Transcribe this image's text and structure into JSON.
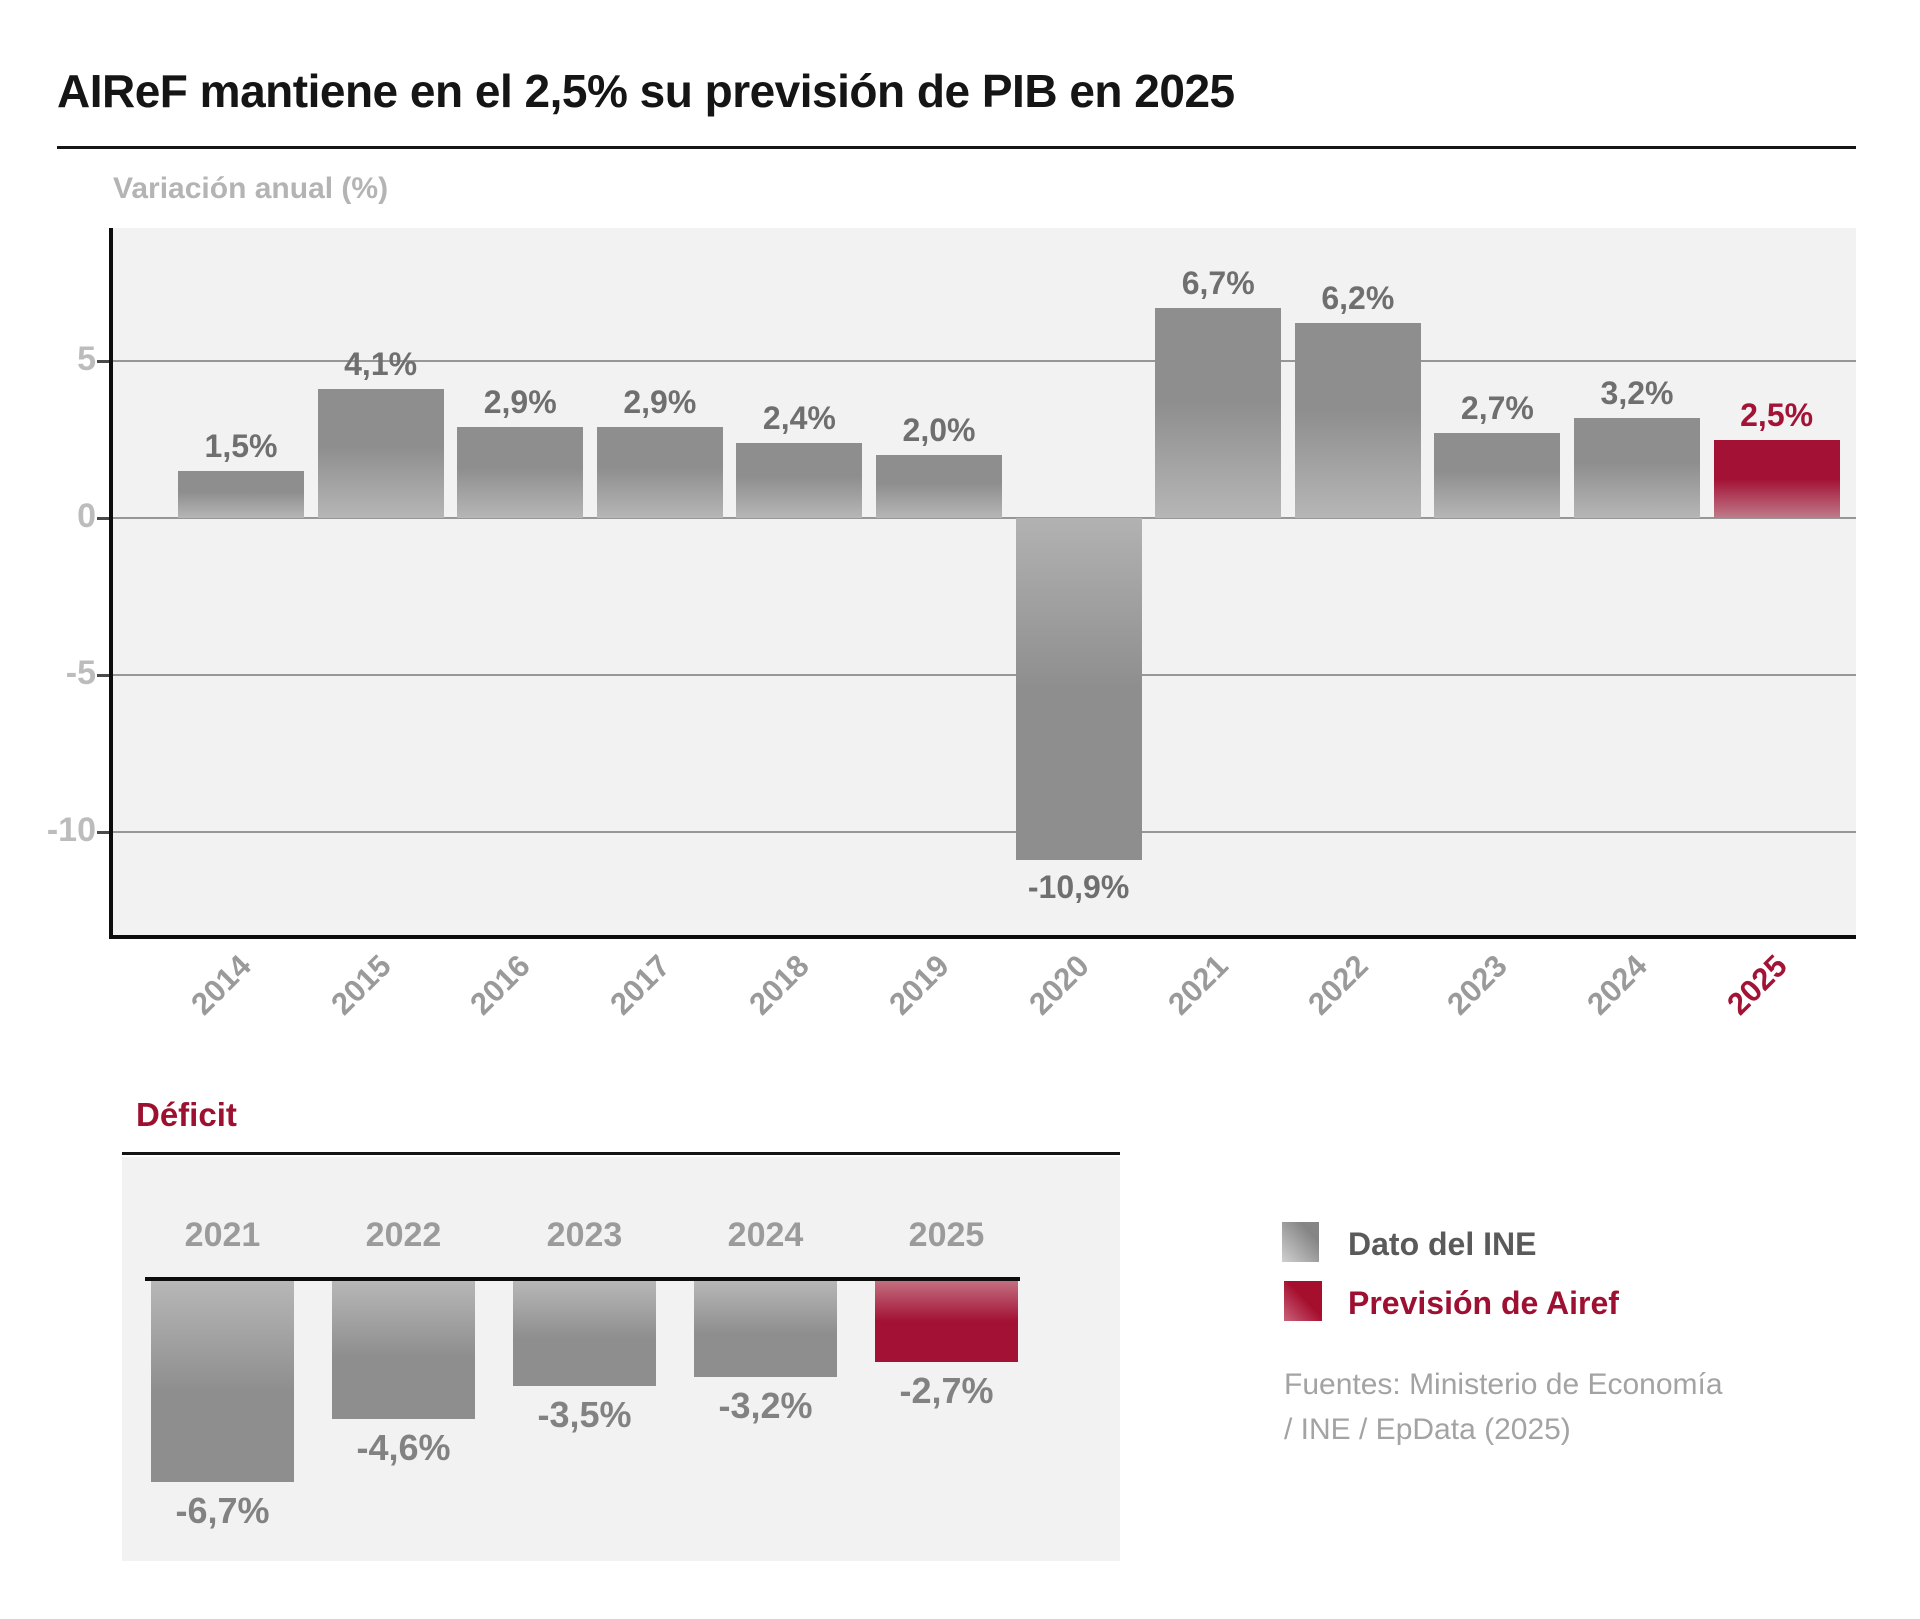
{
  "page": {
    "title": "AIReF mantiene en el 2,5% su previsión de PIB en 2025"
  },
  "chart_data": [
    {
      "id": "gdp",
      "type": "bar",
      "title": "Variación anual (%)",
      "categories": [
        "2014",
        "2015",
        "2016",
        "2017",
        "2018",
        "2019",
        "2020",
        "2021",
        "2022",
        "2023",
        "2024",
        "2025"
      ],
      "values": [
        1.5,
        4.1,
        2.9,
        2.9,
        2.4,
        2.0,
        -10.9,
        6.7,
        6.2,
        2.7,
        3.2,
        2.5
      ],
      "labels": [
        "1,5%",
        "4,1%",
        "2,9%",
        "2,9%",
        "2,4%",
        "2,0%",
        "-10,9%",
        "6,7%",
        "6,2%",
        "2,7%",
        "3,2%",
        "2,5%"
      ],
      "highlight_index": 11,
      "y_ticks": [
        5,
        0,
        -5,
        -10
      ],
      "y_tick_labels": [
        "5",
        "0",
        "-5",
        "-10"
      ],
      "ylim": [
        -13.5,
        9.3
      ],
      "grid": true,
      "xlabel": "",
      "ylabel": "Variación anual (%)",
      "bar_color": "#8e8e8e",
      "highlight_color": "#a31134"
    },
    {
      "id": "deficit",
      "type": "bar",
      "title": "Déficit",
      "categories": [
        "2021",
        "2022",
        "2023",
        "2024",
        "2025"
      ],
      "values": [
        -6.7,
        -4.6,
        -3.5,
        -3.2,
        -2.7
      ],
      "labels": [
        "-6,7%",
        "-4,6%",
        "-3,5%",
        "-3,2%",
        "-2,7%"
      ],
      "highlight_index": 4,
      "grid": false,
      "bar_color": "#8e8e8e",
      "highlight_color": "#a31134"
    }
  ],
  "legend": {
    "items": [
      {
        "label": "Dato del INE",
        "color": "#8e8e8e"
      },
      {
        "label": "Previsión de Airef",
        "color": "#a31134"
      }
    ]
  },
  "source": {
    "line1": "Fuentes: Ministerio de Economía",
    "line2": "/ INE / EpData (2025)"
  }
}
